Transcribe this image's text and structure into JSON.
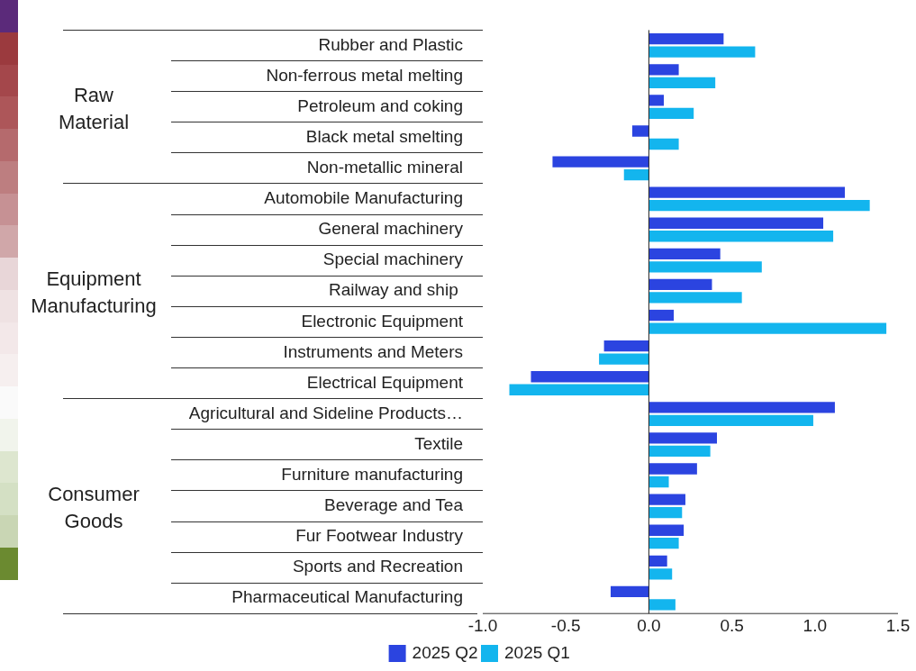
{
  "chart_data": {
    "type": "bar",
    "orientation": "horizontal",
    "categories": [
      "Rubber and Plastic",
      "Non-ferrous metal melting",
      "Petroleum and coking",
      "Black metal smelting",
      "Non-metallic mineral",
      "Automobile Manufacturing",
      "General machinery",
      "Special machinery",
      "Railway and ship ",
      "Electronic Equipment",
      "Instruments and Meters",
      "Electrical Equipment",
      "Agricultural and Sideline Products…",
      "Textile",
      "Furniture manufacturing",
      "Beverage and Tea",
      "Fur Footwear Industry",
      "Sports and Recreation",
      "Pharmaceutical Manufacturing"
    ],
    "series": [
      {
        "name": "2025 Q2",
        "color": "#2b44e0",
        "values": [
          0.45,
          0.18,
          0.09,
          -0.1,
          -0.58,
          1.18,
          1.05,
          0.43,
          0.38,
          0.15,
          -0.27,
          -0.71,
          1.12,
          0.41,
          0.29,
          0.22,
          0.21,
          0.11,
          -0.23
        ]
      },
      {
        "name": "2025 Q1",
        "color": "#13b5ee",
        "values": [
          0.64,
          0.4,
          0.27,
          0.18,
          -0.15,
          1.33,
          1.11,
          0.68,
          0.56,
          1.43,
          -0.3,
          -0.84,
          0.99,
          0.37,
          0.12,
          0.2,
          0.18,
          0.14,
          0.16
        ]
      }
    ],
    "xlim": [
      -1,
      1.5
    ],
    "xticks": [
      {
        "value": -1,
        "label": "-1.0"
      },
      {
        "value": -0.5,
        "label": "-0.5"
      },
      {
        "value": 0,
        "label": "0.0"
      },
      {
        "value": 0.5,
        "label": "0.5"
      },
      {
        "value": 1,
        "label": "1.0"
      },
      {
        "value": 1.5,
        "label": "1.5"
      }
    ],
    "ref_lines": [
      {
        "axis": "x",
        "value": 0,
        "color": "#222222"
      }
    ],
    "annotations": [
      "Raw\nMaterial",
      "Equipment\nManufacturing",
      "Consumer\nGoods"
    ],
    "legend": "bottom"
  }
}
